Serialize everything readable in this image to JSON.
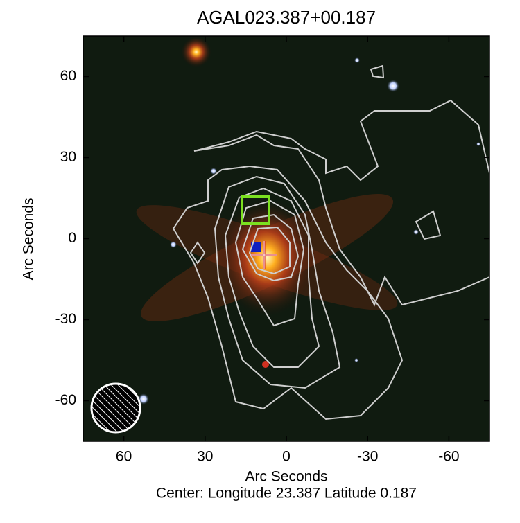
{
  "chart_data": {
    "type": "image",
    "title": "AGAL023.387+00.187",
    "xlabel": "Arc Seconds",
    "ylabel": "Arc Seconds",
    "caption": "Center:  Longitude 23.387 Latitude 0.187",
    "xlim": [
      75,
      -75
    ],
    "ylim": [
      -75,
      75
    ],
    "xticks": [
      60,
      30,
      0,
      -30,
      -60
    ],
    "yticks": [
      -60,
      -30,
      0,
      30,
      60
    ]
  }
}
